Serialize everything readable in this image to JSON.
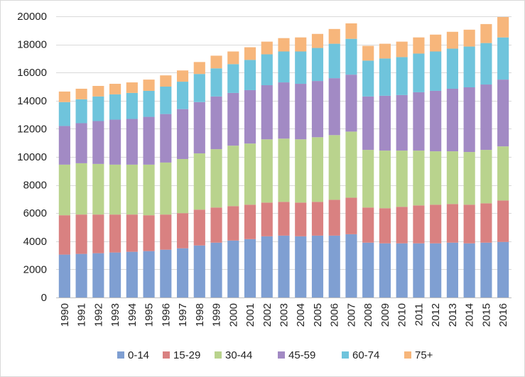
{
  "chart_data": {
    "type": "bar",
    "stacked": true,
    "title": "",
    "xlabel": "",
    "ylabel": "",
    "ylim": [
      0,
      20000
    ],
    "y_ticks": [
      0,
      2000,
      4000,
      6000,
      8000,
      10000,
      12000,
      14000,
      16000,
      18000,
      20000
    ],
    "y_tick_labels": [
      "0",
      "2000",
      "4000",
      "6000",
      "8000",
      "10000",
      "12000",
      "14000",
      "16000",
      "18000",
      "20000"
    ],
    "grid": true,
    "legend_position": "bottom",
    "categories": [
      "1990",
      "1991",
      "1992",
      "1993",
      "1994",
      "1995",
      "1996",
      "1997",
      "1998",
      "1999",
      "2000",
      "2001",
      "2002",
      "2003",
      "2004",
      "2005",
      "2006",
      "2007",
      "2008",
      "2009",
      "2010",
      "2011",
      "2012",
      "2013",
      "2014",
      "2015",
      "2016"
    ],
    "series": [
      {
        "name": "0-14",
        "color": "#7f9fd2",
        "values": [
          3050,
          3100,
          3150,
          3200,
          3250,
          3300,
          3400,
          3500,
          3700,
          3900,
          4050,
          4150,
          4350,
          4400,
          4350,
          4400,
          4400,
          4500,
          3900,
          3850,
          3850,
          3850,
          3850,
          3900,
          3850,
          3900,
          3950
        ]
      },
      {
        "name": "15-29",
        "color": "#d98181",
        "values": [
          2800,
          2800,
          2750,
          2700,
          2650,
          2550,
          2500,
          2500,
          2550,
          2500,
          2450,
          2450,
          2400,
          2400,
          2400,
          2400,
          2550,
          2600,
          2500,
          2500,
          2600,
          2700,
          2750,
          2750,
          2750,
          2800,
          2950
        ]
      },
      {
        "name": "30-44",
        "color": "#b9d38d",
        "values": [
          3600,
          3650,
          3600,
          3550,
          3550,
          3600,
          3700,
          3850,
          4000,
          4150,
          4300,
          4350,
          4500,
          4500,
          4500,
          4600,
          4600,
          4700,
          4100,
          4100,
          4000,
          3900,
          3800,
          3750,
          3750,
          3800,
          3850
        ]
      },
      {
        "name": "45-59",
        "color": "#a28ac4",
        "values": [
          2750,
          2850,
          3050,
          3200,
          3250,
          3400,
          3450,
          3550,
          3650,
          3750,
          3750,
          3800,
          3850,
          4000,
          3950,
          4000,
          4050,
          4050,
          3800,
          3900,
          3950,
          4150,
          4300,
          4450,
          4600,
          4650,
          4750
        ]
      },
      {
        "name": "60-74",
        "color": "#6fc4dc",
        "values": [
          1700,
          1700,
          1750,
          1800,
          1850,
          1850,
          1950,
          1950,
          2000,
          2000,
          2050,
          2150,
          2200,
          2200,
          2300,
          2350,
          2450,
          2550,
          2550,
          2650,
          2700,
          2750,
          2800,
          2850,
          2900,
          2950,
          3000
        ]
      },
      {
        "name": "75+",
        "color": "#f7b67b",
        "values": [
          750,
          750,
          750,
          750,
          750,
          800,
          800,
          800,
          850,
          900,
          900,
          900,
          900,
          950,
          1000,
          1000,
          1050,
          1100,
          1050,
          1050,
          1100,
          1150,
          1200,
          1200,
          1200,
          1350,
          1450
        ]
      }
    ]
  }
}
